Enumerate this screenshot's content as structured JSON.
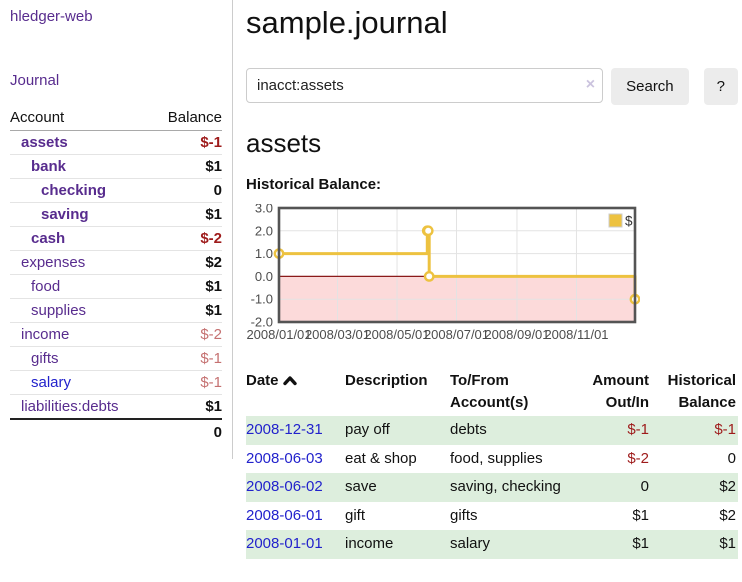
{
  "app": {
    "title": "hledger-web",
    "nav_journal": "Journal"
  },
  "sidebar": {
    "columns": {
      "account": "Account",
      "balance": "Balance"
    },
    "accounts": [
      {
        "name": "assets",
        "indent": 0,
        "bold": true,
        "link_color": "purple",
        "balance": "$-1",
        "balance_style": "bold-red"
      },
      {
        "name": "bank",
        "indent": 1,
        "bold": true,
        "link_color": "purple",
        "balance": "$1",
        "balance_style": "bold-black"
      },
      {
        "name": "checking",
        "indent": 2,
        "bold": true,
        "link_color": "purple",
        "balance": "0",
        "balance_style": "bold-black"
      },
      {
        "name": "saving",
        "indent": 2,
        "bold": true,
        "link_color": "purple",
        "balance": "$1",
        "balance_style": "bold-black"
      },
      {
        "name": "cash",
        "indent": 1,
        "bold": true,
        "link_color": "purple",
        "balance": "$-2",
        "balance_style": "bold-red"
      },
      {
        "name": "expenses",
        "indent": 0,
        "bold": false,
        "link_color": "purple",
        "balance": "$2",
        "balance_style": "bold-black"
      },
      {
        "name": "food",
        "indent": 1,
        "bold": false,
        "link_color": "purple",
        "balance": "$1",
        "balance_style": "bold-black"
      },
      {
        "name": "supplies",
        "indent": 1,
        "bold": false,
        "link_color": "purple",
        "balance": "$1",
        "balance_style": "bold-black"
      },
      {
        "name": "income",
        "indent": 0,
        "bold": false,
        "link_color": "purple",
        "balance": "$-2",
        "balance_style": "light-red"
      },
      {
        "name": "gifts",
        "indent": 1,
        "bold": false,
        "link_color": "purple",
        "balance": "$-1",
        "balance_style": "light-red"
      },
      {
        "name": "salary",
        "indent": 1,
        "bold": false,
        "link_color": "blue",
        "balance": "$-1",
        "balance_style": "light-red"
      },
      {
        "name": "liabilities:debts",
        "indent": 0,
        "bold": false,
        "link_color": "purple",
        "balance": "$1",
        "balance_style": "bold-black"
      }
    ],
    "total": "0"
  },
  "header": {
    "title": "sample.journal"
  },
  "search": {
    "value": "inacct:assets",
    "clear_icon": "×",
    "button": "Search",
    "help_button": "?"
  },
  "account_page": {
    "title": "assets",
    "chart_label": "Historical Balance:"
  },
  "chart_data": {
    "type": "line",
    "step": true,
    "title": "Historical Balance",
    "x_range": [
      "2008-01-01",
      "2008-12-31"
    ],
    "ylim": [
      -2,
      3
    ],
    "y_ticks": [
      "3.0",
      "2.0",
      "1.0",
      "0.0",
      "-1.0",
      "-2.0"
    ],
    "y_tick_values": [
      3,
      2,
      1,
      0,
      -1,
      -2
    ],
    "x_ticks": [
      "2008/01/01",
      "2008/03/01",
      "2008/05/01",
      "2008/07/01",
      "2008/09/01",
      "2008/11/01"
    ],
    "grid": true,
    "legend": {
      "label": "$",
      "position": "top-right"
    },
    "series": [
      {
        "name": "$",
        "points": [
          [
            "2008-01-01",
            1
          ],
          [
            "2008-06-01",
            2
          ],
          [
            "2008-06-02",
            2
          ],
          [
            "2008-06-03",
            0
          ],
          [
            "2008-12-31",
            -1
          ]
        ]
      }
    ],
    "colors": {
      "line": "#edc240",
      "marker_fill": "#ffffff",
      "negative_region": "#fcdada",
      "zero_line": "#8b1a1a",
      "grid_line": "#e3e3e3",
      "border": "#545454",
      "swatch_border": "#cccccc",
      "tick_label": "#4d4d4d"
    }
  },
  "register": {
    "headers": [
      "Date",
      "Description",
      "To/From Account(s)",
      "Amount Out/In",
      "Historical Balance"
    ],
    "sorted_column": 0,
    "sort_direction": "asc",
    "rows": [
      {
        "date": "2008-12-31",
        "description": "pay off",
        "accounts": "debts",
        "amount": "$-1",
        "amount_negative": true,
        "balance": "$-1",
        "balance_negative": true
      },
      {
        "date": "2008-06-03",
        "description": "eat & shop",
        "accounts": "food, supplies",
        "amount": "$-2",
        "amount_negative": true,
        "balance": "0",
        "balance_negative": false
      },
      {
        "date": "2008-06-02",
        "description": "save",
        "accounts": "saving, checking",
        "amount": "0",
        "amount_negative": false,
        "balance": "$2",
        "balance_negative": false
      },
      {
        "date": "2008-06-01",
        "description": "gift",
        "accounts": "gifts",
        "amount": "$1",
        "amount_negative": false,
        "balance": "$2",
        "balance_negative": false
      },
      {
        "date": "2008-01-01",
        "description": "income",
        "accounts": "salary",
        "amount": "$1",
        "amount_negative": false,
        "balance": "$1",
        "balance_negative": false
      }
    ]
  }
}
